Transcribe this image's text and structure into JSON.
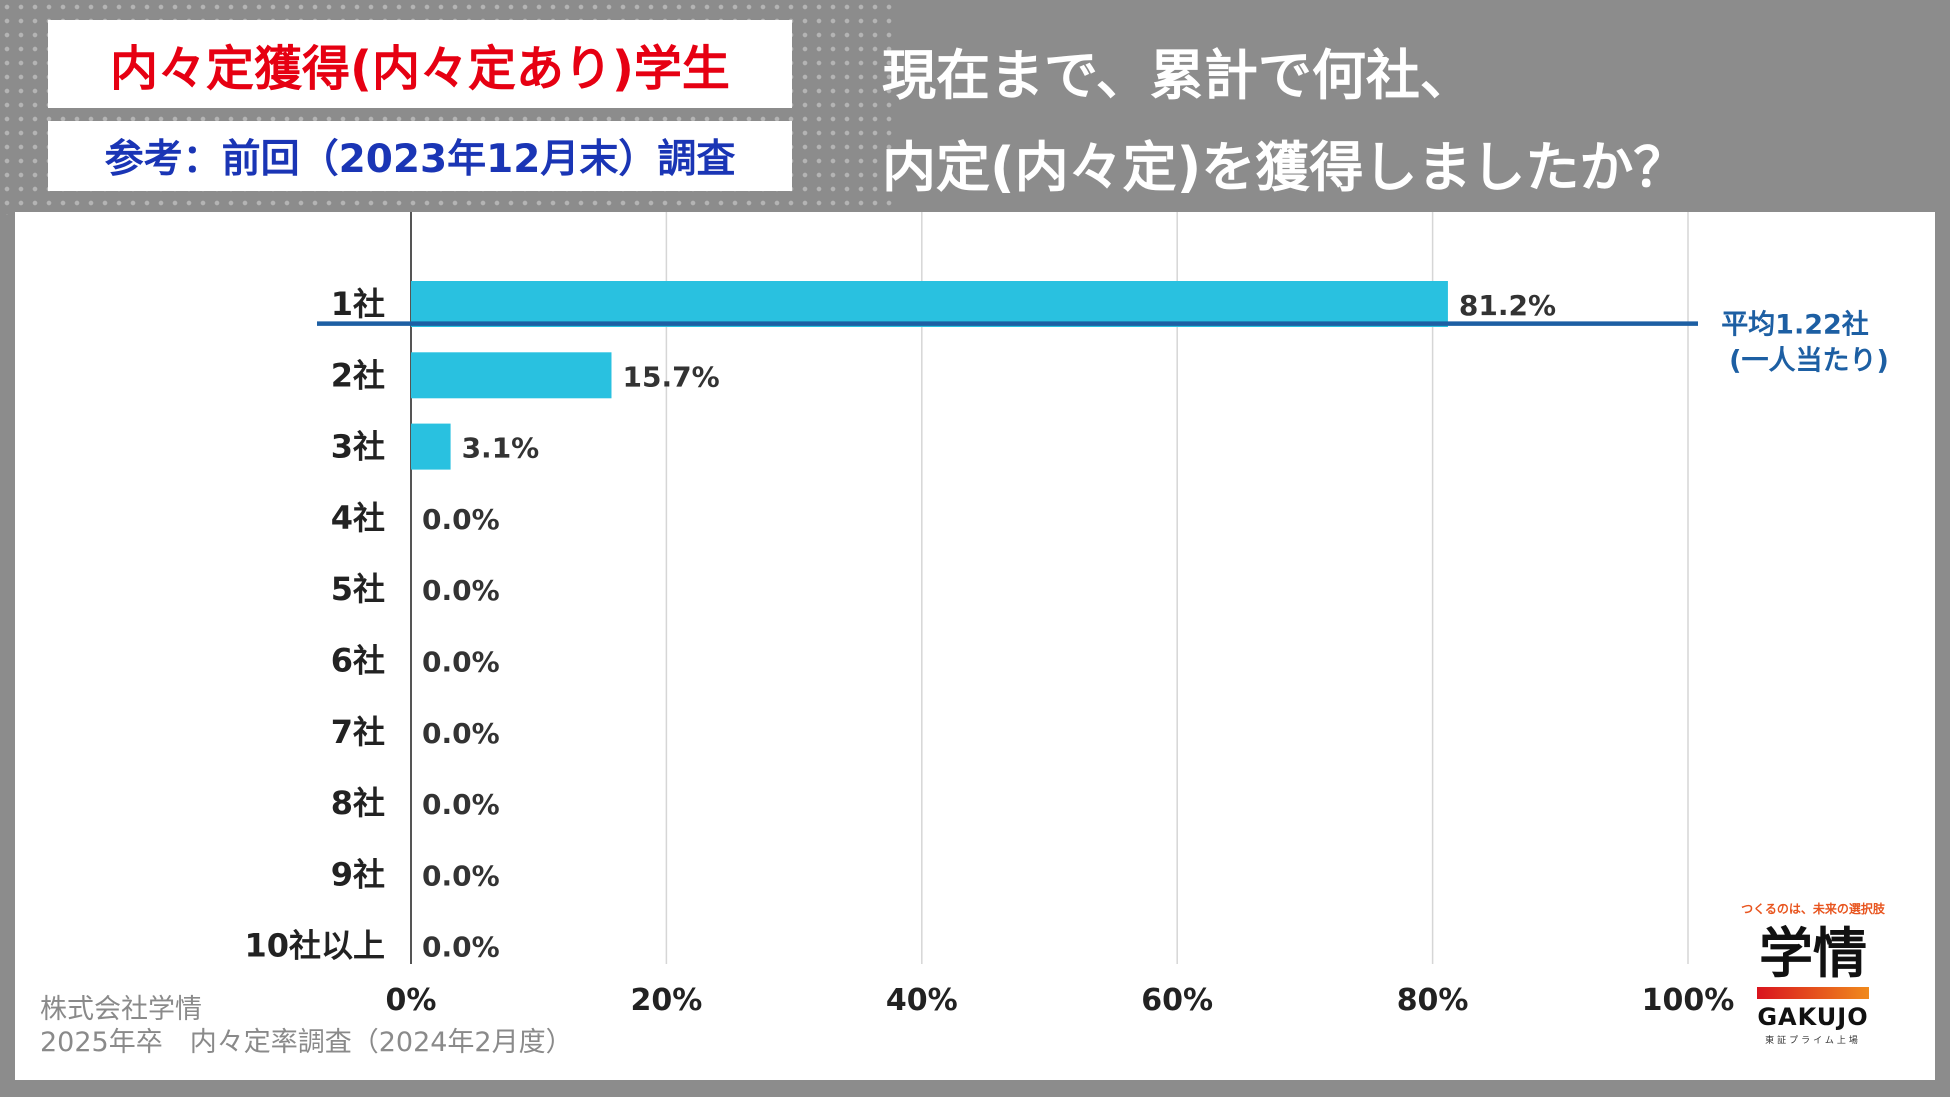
{
  "header": {
    "tag_main": "内々定獲得(内々定あり)学生",
    "tag_sub": "参考：前回（2023年12月末）調査",
    "question_line1": "現在まで、累計で何社、",
    "question_line2": "内定(内々定)を獲得しましたか？"
  },
  "colors": {
    "bar": "#29c1e0",
    "average_line": "#1d5fa3",
    "tag_main_text": "#e60012",
    "tag_sub_text": "#1a35b5"
  },
  "chart_data": {
    "type": "bar",
    "orientation": "horizontal",
    "categories": [
      "1社",
      "2社",
      "3社",
      "4社",
      "5社",
      "6社",
      "7社",
      "8社",
      "9社",
      "10社以上"
    ],
    "values": [
      81.2,
      15.7,
      3.1,
      0.0,
      0.0,
      0.0,
      0.0,
      0.0,
      0.0,
      0.0
    ],
    "value_labels": [
      "81.2%",
      "15.7%",
      "3.1%",
      "0.0%",
      "0.0%",
      "0.0%",
      "0.0%",
      "0.0%",
      "0.0%",
      "0.0%"
    ],
    "xlim": [
      0,
      100
    ],
    "x_ticks": [
      0,
      20,
      40,
      60,
      80,
      100
    ],
    "x_tick_labels": [
      "0%",
      "20%",
      "40%",
      "60%",
      "80%",
      "100%"
    ],
    "grid": true,
    "average": {
      "value": 1.22,
      "label_line1": "平均1.22社",
      "label_line2": "(一人当たり)"
    }
  },
  "footer": {
    "company": "株式会社学情",
    "survey": "2025年卒　内々定率調査（2024年2月度）"
  },
  "logo": {
    "tagline": "つくるのは、未来の選択肢",
    "mark": "学情",
    "en": "GAKUJO",
    "listing": "東証プライム上場"
  }
}
